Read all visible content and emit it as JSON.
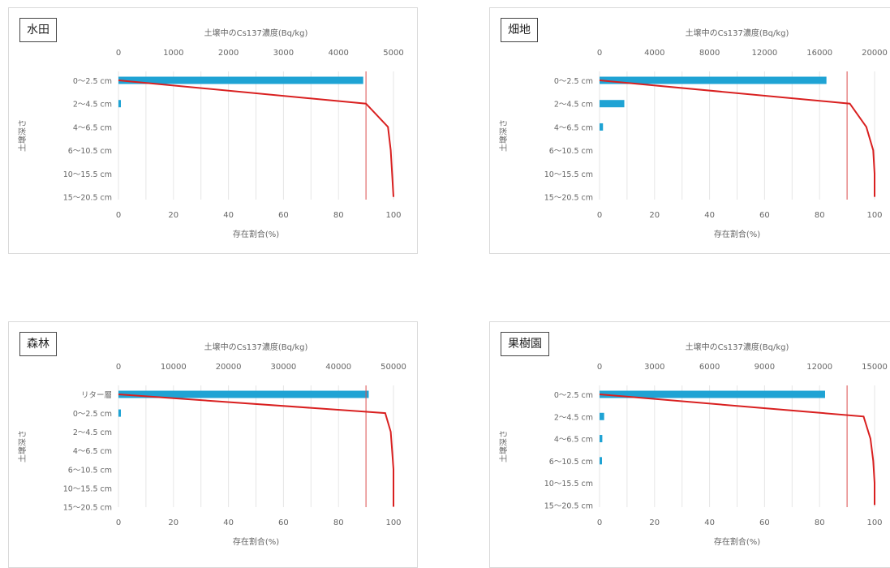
{
  "chart_data": [
    {
      "type": "bar",
      "label": "水田",
      "top_axis_label": "土壌中のCs137濃度(Bq/kg)",
      "bottom_axis_label": "存在割合(%)",
      "y_axis_label": "土壌深さ",
      "top_ticks": [
        "0",
        "1000",
        "2000",
        "3000",
        "4000",
        "5000"
      ],
      "top_max": 5000,
      "bottom_ticks": [
        "0",
        "20",
        "40",
        "60",
        "80",
        "100"
      ],
      "bottom_max": 100,
      "categories": [
        "0～2.5 cm",
        "2～4.5 cm",
        "4～6.5 cm",
        "6～10.5 cm",
        "10～15.5 cm",
        "15～20.5 cm"
      ],
      "bar_values": [
        4450,
        20,
        0,
        0,
        0,
        0
      ],
      "cumulative_percent": [
        0,
        90,
        98,
        99,
        99.5,
        100
      ],
      "reference_line": 90,
      "colors": {
        "bar": "#1fa3d4",
        "line": "#d92020",
        "refline": "#e05050"
      }
    },
    {
      "type": "bar",
      "label": "畑地",
      "top_axis_label": "土壌中のCs137濃度(Bq/kg)",
      "bottom_axis_label": "存在割合(%)",
      "y_axis_label": "土壌深さ",
      "top_ticks": [
        "0",
        "4000",
        "8000",
        "12000",
        "16000",
        "20000"
      ],
      "top_max": 20000,
      "bottom_ticks": [
        "0",
        "20",
        "40",
        "60",
        "80",
        "100"
      ],
      "bottom_max": 100,
      "categories": [
        "0～2.5 cm",
        "2～4.5 cm",
        "4～6.5 cm",
        "6～10.5 cm",
        "10～15.5 cm",
        "15～20.5 cm"
      ],
      "bar_values": [
        16500,
        1800,
        250,
        0,
        0,
        0
      ],
      "cumulative_percent": [
        0,
        91,
        97,
        99.5,
        100,
        100
      ],
      "reference_line": 90,
      "colors": {
        "bar": "#1fa3d4",
        "line": "#d92020",
        "refline": "#e05050"
      }
    },
    {
      "type": "bar",
      "label": "森林",
      "top_axis_label": "土壌中のCs137濃度(Bq/kg)",
      "bottom_axis_label": "存在割合(%)",
      "y_axis_label": "土壌深さ",
      "top_ticks": [
        "0",
        "10000",
        "20000",
        "30000",
        "40000",
        "50000"
      ],
      "top_max": 50000,
      "bottom_ticks": [
        "0",
        "20",
        "40",
        "60",
        "80",
        "100"
      ],
      "bottom_max": 100,
      "categories": [
        "リター層",
        "0～2.5 cm",
        "2～4.5 cm",
        "4～6.5 cm",
        "6～10.5 cm",
        "10～15.5 cm",
        "15～20.5 cm"
      ],
      "bar_values": [
        45500,
        300,
        0,
        0,
        0,
        0,
        0
      ],
      "cumulative_percent": [
        0,
        97,
        99,
        99.5,
        100,
        100,
        100
      ],
      "reference_line": 90,
      "colors": {
        "bar": "#1fa3d4",
        "line": "#d92020",
        "refline": "#e05050"
      }
    },
    {
      "type": "bar",
      "label": "果樹園",
      "top_axis_label": "土壌中のCs137濃度(Bq/kg)",
      "bottom_axis_label": "存在割合(%)",
      "y_axis_label": "土壌深さ",
      "top_ticks": [
        "0",
        "3000",
        "6000",
        "9000",
        "12000",
        "15000"
      ],
      "top_max": 15000,
      "bottom_ticks": [
        "0",
        "20",
        "40",
        "60",
        "80",
        "100"
      ],
      "bottom_max": 100,
      "categories": [
        "0～2.5 cm",
        "2～4.5 cm",
        "4～6.5 cm",
        "6～10.5 cm",
        "10～15.5 cm",
        "15～20.5 cm"
      ],
      "bar_values": [
        12300,
        250,
        150,
        50,
        0,
        0
      ],
      "cumulative_percent": [
        0,
        96,
        98.5,
        99.5,
        100,
        100
      ],
      "reference_line": 90,
      "colors": {
        "bar": "#1fa3d4",
        "line": "#d92020",
        "refline": "#e05050"
      }
    }
  ]
}
